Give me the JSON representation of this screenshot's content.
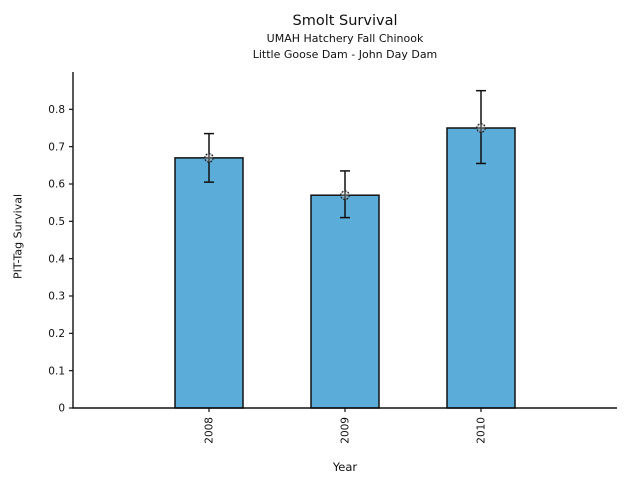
{
  "figure": {
    "title": "Smolt Survival",
    "subtitle1": "UMAH Hatchery Fall Chinook",
    "subtitle2": "Little Goose Dam - John Day Dam"
  },
  "chart_data": {
    "type": "bar",
    "title": "Smolt Survival",
    "subtitles": [
      "UMAH Hatchery Fall Chinook",
      "Little Goose Dam - John Day Dam"
    ],
    "xlabel": "Year",
    "ylabel": "PIT-Tag Survival",
    "categories": [
      "2008",
      "2009",
      "2010"
    ],
    "values": [
      0.67,
      0.57,
      0.75
    ],
    "error_low": [
      0.605,
      0.51,
      0.655
    ],
    "error_high": [
      0.735,
      0.635,
      0.85
    ],
    "yticks": [
      0,
      0.1,
      0.2,
      0.3,
      0.4,
      0.5,
      0.6,
      0.7,
      0.8
    ],
    "ytick_labels": [
      "0",
      "0.1",
      "0.2",
      "0.3",
      "0.4",
      "0.5",
      "0.6",
      "0.7",
      "0.8"
    ],
    "ylim": [
      0,
      0.9
    ],
    "grid": false,
    "legend": null,
    "marker": "open-circle",
    "colors": {
      "bar_fill": "#5BACD8",
      "bar_edge": "#111111",
      "error_bar": "#111111",
      "marker_edge": "#222222",
      "marker_fill": "#bbbbbb",
      "axis": "#111111",
      "text": "#111111"
    }
  }
}
